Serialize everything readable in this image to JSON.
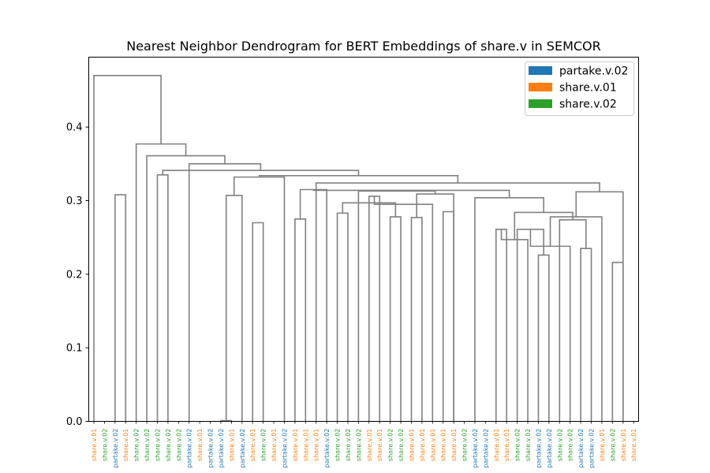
{
  "chart_data": {
    "type": "dendrogram",
    "title": "Nearest Neighbor Dendrogram for BERT Embeddings of share.v in SEMCOR",
    "xlabel": "",
    "ylabel": "",
    "ylim": [
      0,
      0.495
    ],
    "yticks": [
      "0.0",
      "0.1",
      "0.2",
      "0.3",
      "0.4"
    ],
    "grid": false,
    "legend_position": "top-right",
    "link_color": "#808080",
    "senses": [
      {
        "name": "partake.v.02",
        "color": "#1f77b4"
      },
      {
        "name": "share.v.01",
        "color": "#ff7f0e"
      },
      {
        "name": "share.v.02",
        "color": "#2ca02c"
      }
    ],
    "leaves": [
      "share.v.01",
      "share.v.02",
      "partake.v.02",
      "share.v.01",
      "share.v.02",
      "share.v.02",
      "share.v.02",
      "share.v.02",
      "share.v.02",
      "partake.v.02",
      "share.v.01",
      "partake.v.02",
      "partake.v.02",
      "share.v.01",
      "partake.v.02",
      "share.v.01",
      "share.v.02",
      "share.v.01",
      "partake.v.02",
      "share.v.01",
      "share.v.01",
      "share.v.01",
      "partake.v.02",
      "share.v.02",
      "share.v.02",
      "share.v.02",
      "share.v.01",
      "share.v.01",
      "share.v.02",
      "share.v.02",
      "share.v.01",
      "share.v.01",
      "share.v.01",
      "share.v.01",
      "share.v.01",
      "share.v.02",
      "partake.v.02",
      "partake.v.02",
      "share.v.01",
      "share.v.01",
      "share.v.02",
      "share.v.02",
      "partake.v.02",
      "partake.v.02",
      "share.v.02",
      "share.v.02",
      "partake.v.02",
      "partake.v.02",
      "share.v.01",
      "share.v.02",
      "share.v.01",
      "share.v.01"
    ],
    "merges": [
      [
        2,
        3,
        0.308
      ],
      [
        6,
        7,
        0.335
      ],
      [
        12,
        13,
        0.001
      ],
      [
        15,
        16,
        0.27
      ],
      [
        14,
        56,
        0.307
      ],
      [
        19,
        20,
        0.275
      ],
      [
        23,
        24,
        0.283
      ],
      [
        28,
        29,
        0.278
      ],
      [
        30,
        31,
        0.277
      ],
      [
        33,
        34,
        0.285
      ],
      [
        38,
        39,
        0.261
      ],
      [
        42,
        43,
        0.226
      ],
      [
        41,
        62,
        0.247
      ],
      [
        40,
        63,
        0.261
      ],
      [
        46,
        47,
        0.235
      ],
      [
        45,
        65,
        0.238
      ],
      [
        49,
        50,
        0.216
      ],
      [
        48,
        67,
        0.278
      ],
      [
        51,
        52,
        0.269
      ],
      [
        27,
        59,
        0.304
      ],
      [
        60,
        61,
        0.297
      ],
      [
        72,
        32,
        0.295
      ],
      [
        71,
        73,
        0.308
      ],
      [
        44,
        66,
        0.274
      ],
      [
        75,
        68,
        0.281
      ],
      [
        64,
        76,
        0.284
      ],
      [
        37,
        62,
        0.299
      ],
      [
        36,
        77,
        0.304
      ],
      [
        21,
        58,
        0.332
      ],
      [
        78,
        79,
        0.306
      ],
      [
        70,
        80,
        0.308
      ],
      [
        81,
        35,
        0.311
      ],
      [
        26,
        82,
        0.313
      ],
      [
        22,
        58,
        0.314
      ],
      [
        84,
        85,
        0.316
      ],
      [
        54,
        69,
        0.316
      ],
      [
        86,
        87,
        0.316
      ],
      [
        88,
        53,
        0.314
      ],
      [
        25,
        82,
        0.315
      ],
      [
        90,
        89,
        0.315
      ],
      [
        18,
        57,
        0.332
      ],
      [
        92,
        91,
        0.324
      ],
      [
        17,
        93,
        0.333
      ],
      [
        94,
        95,
        0.334
      ],
      [
        11,
        96,
        0.342
      ],
      [
        97,
        98,
        0.338
      ],
      [
        10,
        99,
        0.342
      ],
      [
        100,
        101,
        0.35
      ],
      [
        9,
        102,
        0.356
      ],
      [
        103,
        8,
        0.363
      ],
      [
        5,
        104,
        0.361
      ],
      [
        105,
        106,
        0.377
      ],
      [
        1,
        54,
        0.391
      ],
      [
        4,
        107,
        0.368
      ]
    ],
    "draw_merges": [
      [
        2,
        3,
        0.308
      ],
      [
        6,
        7,
        0.335
      ],
      [
        12,
        13,
        0.001
      ],
      [
        15,
        16,
        0.27
      ],
      [
        14,
        "m3",
        0.307
      ],
      [
        19,
        20,
        0.275
      ],
      [
        23,
        24,
        0.283
      ],
      [
        28,
        29,
        0.278
      ],
      [
        30,
        31,
        0.277
      ],
      [
        33,
        34,
        0.285
      ],
      [
        38,
        39,
        0.261
      ],
      [
        42,
        43,
        0.226
      ],
      [
        41,
        "m11",
        0.247
      ],
      [
        40,
        "m12",
        0.261
      ],
      [
        46,
        47,
        0.235
      ],
      [
        45,
        "m14",
        0.238
      ],
      [
        49,
        50,
        0.216
      ],
      [
        48,
        "m16",
        0.278
      ],
      [
        51,
        52,
        0.269
      ],
      [
        27,
        26,
        0.306
      ],
      [
        "m7",
        "m8",
        0.297
      ],
      [
        "m20",
        32,
        0.295
      ],
      [
        "m19",
        "m21",
        0.304
      ],
      [
        44,
        "m15",
        0.274
      ],
      [
        "m23",
        "m17",
        0.281
      ],
      [
        "m13",
        "m24",
        0.284
      ],
      [
        37,
        "m25",
        0.299
      ],
      [
        36,
        "m26",
        0.304
      ],
      [
        35,
        "m27",
        0.308
      ],
      [
        "m9",
        34,
        0.309
      ],
      [
        "m22",
        "m29",
        0.311
      ],
      [
        25,
        "m30",
        0.313
      ],
      [
        22,
        "m6",
        0.315
      ],
      [
        "m32",
        "m31",
        0.315
      ],
      [
        "m28",
        "m33",
        0.314
      ],
      [
        50,
        "m18",
        0.312
      ],
      [
        "m34",
        "m35",
        0.316
      ],
      [
        21,
        "m36",
        0.324
      ],
      [
        "m5",
        18,
        0.332
      ],
      [
        17,
        "m37",
        0.332
      ],
      [
        "m38",
        "m39",
        0.334
      ],
      [
        11,
        "m40",
        0.34
      ],
      [
        "m2",
        "m41",
        0.341
      ],
      [
        10,
        "m42",
        0.342
      ],
      [
        9,
        "m43",
        0.35
      ],
      [
        8,
        "m44",
        0.357
      ],
      [
        5,
        "m45",
        0.361
      ],
      [
        "m1",
        "m46",
        0.368
      ],
      [
        4,
        "m47",
        0.377
      ],
      [
        1,
        "m48",
        0.391
      ],
      [
        0,
        "m49",
        0.47
      ]
    ]
  }
}
